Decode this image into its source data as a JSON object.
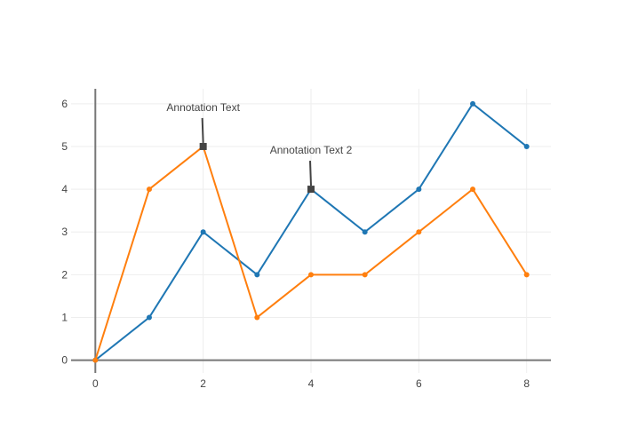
{
  "chart_data": {
    "type": "line",
    "x": [
      0,
      1,
      2,
      3,
      4,
      5,
      6,
      7,
      8
    ],
    "series": [
      {
        "color": "#1f77b4",
        "values": [
          0,
          1,
          3,
          2,
          4,
          3,
          4,
          6,
          5
        ]
      },
      {
        "color": "#ff7f0e",
        "values": [
          0,
          4,
          5,
          1,
          2,
          2,
          3,
          4,
          2
        ]
      }
    ],
    "xlim": [
      -0.45,
      8.45
    ],
    "ylim": [
      -0.3,
      6.35
    ],
    "x_ticks": [
      0,
      2,
      4,
      6,
      8
    ],
    "y_ticks": [
      0,
      1,
      2,
      3,
      4,
      5,
      6
    ],
    "grid": true,
    "legend": "none",
    "annotations": [
      {
        "text": "Annotation Text",
        "x": 2,
        "y": 5
      },
      {
        "text": "Annotation Text 2",
        "x": 4,
        "y": 4
      }
    ],
    "colors": {
      "grid": "#eeeeee",
      "axis": "#444444",
      "zero_line": "#777777",
      "annotation_arrow": "#444444"
    }
  }
}
